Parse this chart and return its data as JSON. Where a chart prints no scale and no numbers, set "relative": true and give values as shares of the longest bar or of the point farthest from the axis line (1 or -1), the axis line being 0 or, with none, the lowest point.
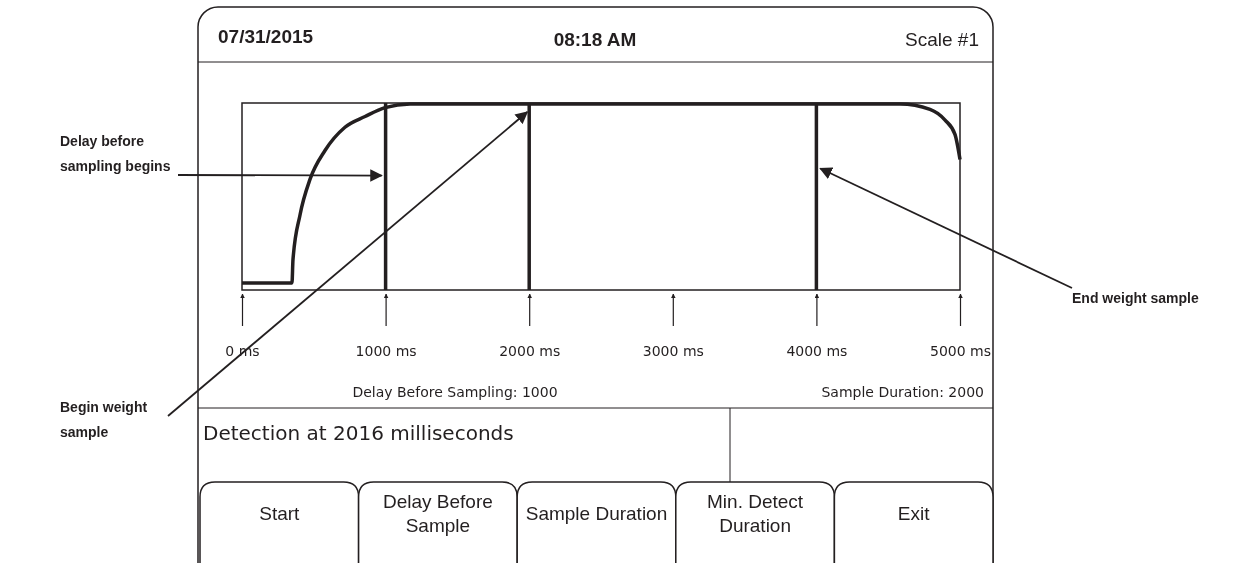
{
  "chart_data": {
    "type": "line",
    "relative": true,
    "x": [
      0,
      348,
      355,
      404,
      474,
      578,
      717,
      857,
      996,
      1170,
      4582,
      4791,
      4896,
      4965,
      5000
    ],
    "series": [
      {
        "color": "#231f20",
        "values": [
          0,
          0,
          0.13,
          0.38,
          0.58,
          0.74,
          0.87,
          0.93,
          0.98,
          1,
          1,
          0.97,
          0.91,
          0.83,
          0.69
        ]
      }
    ],
    "xlim": [
      0,
      5000
    ],
    "xticks": [
      {
        "value": 0,
        "label": "0 ms"
      },
      {
        "value": 1000,
        "label": "1000 ms"
      },
      {
        "value": 2000,
        "label": "2000 ms"
      },
      {
        "value": 3000,
        "label": "3000 ms"
      },
      {
        "value": 4000,
        "label": "4000 ms"
      },
      {
        "value": 5000,
        "label": "5000 ms"
      }
    ],
    "ref_lines": [
      {
        "axis": "x",
        "value": 1000,
        "color": "#231f20"
      },
      {
        "axis": "x",
        "value": 2000,
        "color": "#231f20"
      },
      {
        "axis": "x",
        "value": 4000,
        "color": "#231f20"
      }
    ],
    "annotations": [
      {
        "text": "Delay before sampling begins",
        "x": 1000,
        "y": 0.6
      },
      "Begin weight sample",
      {
        "text": "End weight sample",
        "x": 4000,
        "y": 0.64
      },
      "07/31/2015",
      "08:18 AM",
      "Scale #1",
      "Delay Before Sampling:  1000",
      "Sample Duration: 2000",
      "Detection at 2016 milliseconds",
      "Start",
      "Delay Before Sample",
      "Sample Duration",
      "Min. Detect Duration",
      "Exit"
    ]
  }
}
